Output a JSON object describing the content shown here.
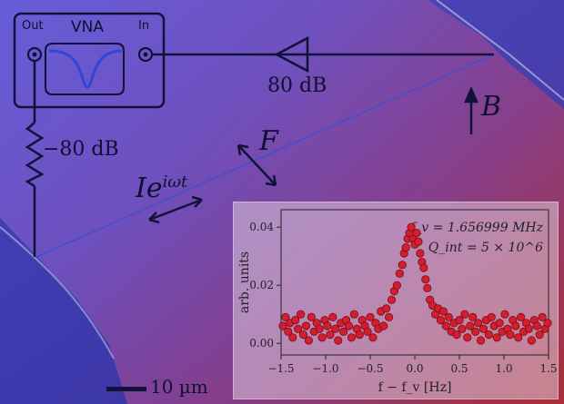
{
  "schematic": {
    "instrument_title": "VNA",
    "port_out": "Out",
    "port_in": "In",
    "amplifier_gain": "80 dB",
    "attenuation": "−80 dB",
    "current_label_base": "I",
    "current_label_exp": "e",
    "current_label_sup": "iωt",
    "force_label": "F",
    "field_label": "B",
    "scalebar_label": "10 µm"
  },
  "colors": {
    "schematic_line": "#11123a",
    "vna_trace": "#2f46d8",
    "wire": "#3c4fd0",
    "data_marker_fill": "#d21e2e",
    "data_marker_edge": "#7a0c1a"
  },
  "chart_data": {
    "type": "scatter",
    "xlabel": "f − f_v [Hz]",
    "ylabel": "arb. units",
    "xlim": [
      -1.5,
      1.5
    ],
    "ylim": [
      -0.004,
      0.046
    ],
    "xticks": [
      -1.5,
      -1.0,
      -0.5,
      0.0,
      0.5,
      1.0,
      1.5
    ],
    "xtick_labels": [
      "−1.5",
      "−1.0",
      "−0.5",
      "0.0",
      "0.5",
      "1.0",
      "1.5"
    ],
    "yticks": [
      0.0,
      0.02,
      0.04
    ],
    "ytick_labels": [
      "0.00",
      "0.02",
      "0.04"
    ],
    "annotation_line1": "f_v = 1.656999 MHz",
    "annotation_line2": "Q_int = 5 × 10^6",
    "series": [
      {
        "x": [
          -1.48,
          -1.45,
          -1.42,
          -1.4,
          -1.37,
          -1.34,
          -1.31,
          -1.28,
          -1.25,
          -1.22,
          -1.19,
          -1.16,
          -1.13,
          -1.1,
          -1.07,
          -1.04,
          -1.01,
          -0.98,
          -0.95,
          -0.92,
          -0.89,
          -0.86,
          -0.83,
          -0.8,
          -0.77,
          -0.74,
          -0.71,
          -0.68,
          -0.65,
          -0.62,
          -0.59,
          -0.56,
          -0.53,
          -0.5,
          -0.47,
          -0.44,
          -0.41,
          -0.38,
          -0.35,
          -0.32,
          -0.29,
          -0.26,
          -0.23,
          -0.2,
          -0.17,
          -0.14,
          -0.12,
          -0.1,
          -0.08,
          -0.06,
          -0.04,
          -0.02,
          0.0,
          0.02,
          0.04,
          0.06,
          0.08,
          0.1,
          0.12,
          0.14,
          0.17,
          0.2,
          0.23,
          0.26,
          0.29,
          0.32,
          0.35,
          0.38,
          0.41,
          0.44,
          0.47,
          0.5,
          0.53,
          0.56,
          0.59,
          0.62,
          0.65,
          0.68,
          0.71,
          0.74,
          0.77,
          0.8,
          0.83,
          0.86,
          0.89,
          0.92,
          0.95,
          0.98,
          1.01,
          1.04,
          1.07,
          1.1,
          1.13,
          1.16,
          1.19,
          1.22,
          1.25,
          1.28,
          1.31,
          1.34,
          1.37,
          1.4,
          1.43,
          1.46,
          1.49
        ],
        "y": [
          0.006,
          0.009,
          0.004,
          0.007,
          0.002,
          0.008,
          0.005,
          0.01,
          0.003,
          0.006,
          0.001,
          0.009,
          0.004,
          0.007,
          0.005,
          0.002,
          0.008,
          0.006,
          0.003,
          0.009,
          0.005,
          0.001,
          0.007,
          0.004,
          0.008,
          0.006,
          0.002,
          0.01,
          0.005,
          0.003,
          0.008,
          0.006,
          0.004,
          0.009,
          0.002,
          0.007,
          0.005,
          0.011,
          0.006,
          0.012,
          0.009,
          0.015,
          0.018,
          0.02,
          0.024,
          0.027,
          0.031,
          0.033,
          0.036,
          0.038,
          0.04,
          0.036,
          0.034,
          0.038,
          0.035,
          0.031,
          0.028,
          0.026,
          0.022,
          0.019,
          0.015,
          0.013,
          0.01,
          0.012,
          0.008,
          0.011,
          0.006,
          0.009,
          0.004,
          0.007,
          0.003,
          0.008,
          0.005,
          0.01,
          0.002,
          0.006,
          0.009,
          0.004,
          0.007,
          0.001,
          0.005,
          0.008,
          0.003,
          0.009,
          0.006,
          0.002,
          0.007,
          0.004,
          0.01,
          0.005,
          0.003,
          0.008,
          0.006,
          0.002,
          0.009,
          0.004,
          0.007,
          0.005,
          0.001,
          0.008,
          0.006,
          0.003,
          0.009,
          0.005,
          0.007
        ]
      }
    ]
  }
}
